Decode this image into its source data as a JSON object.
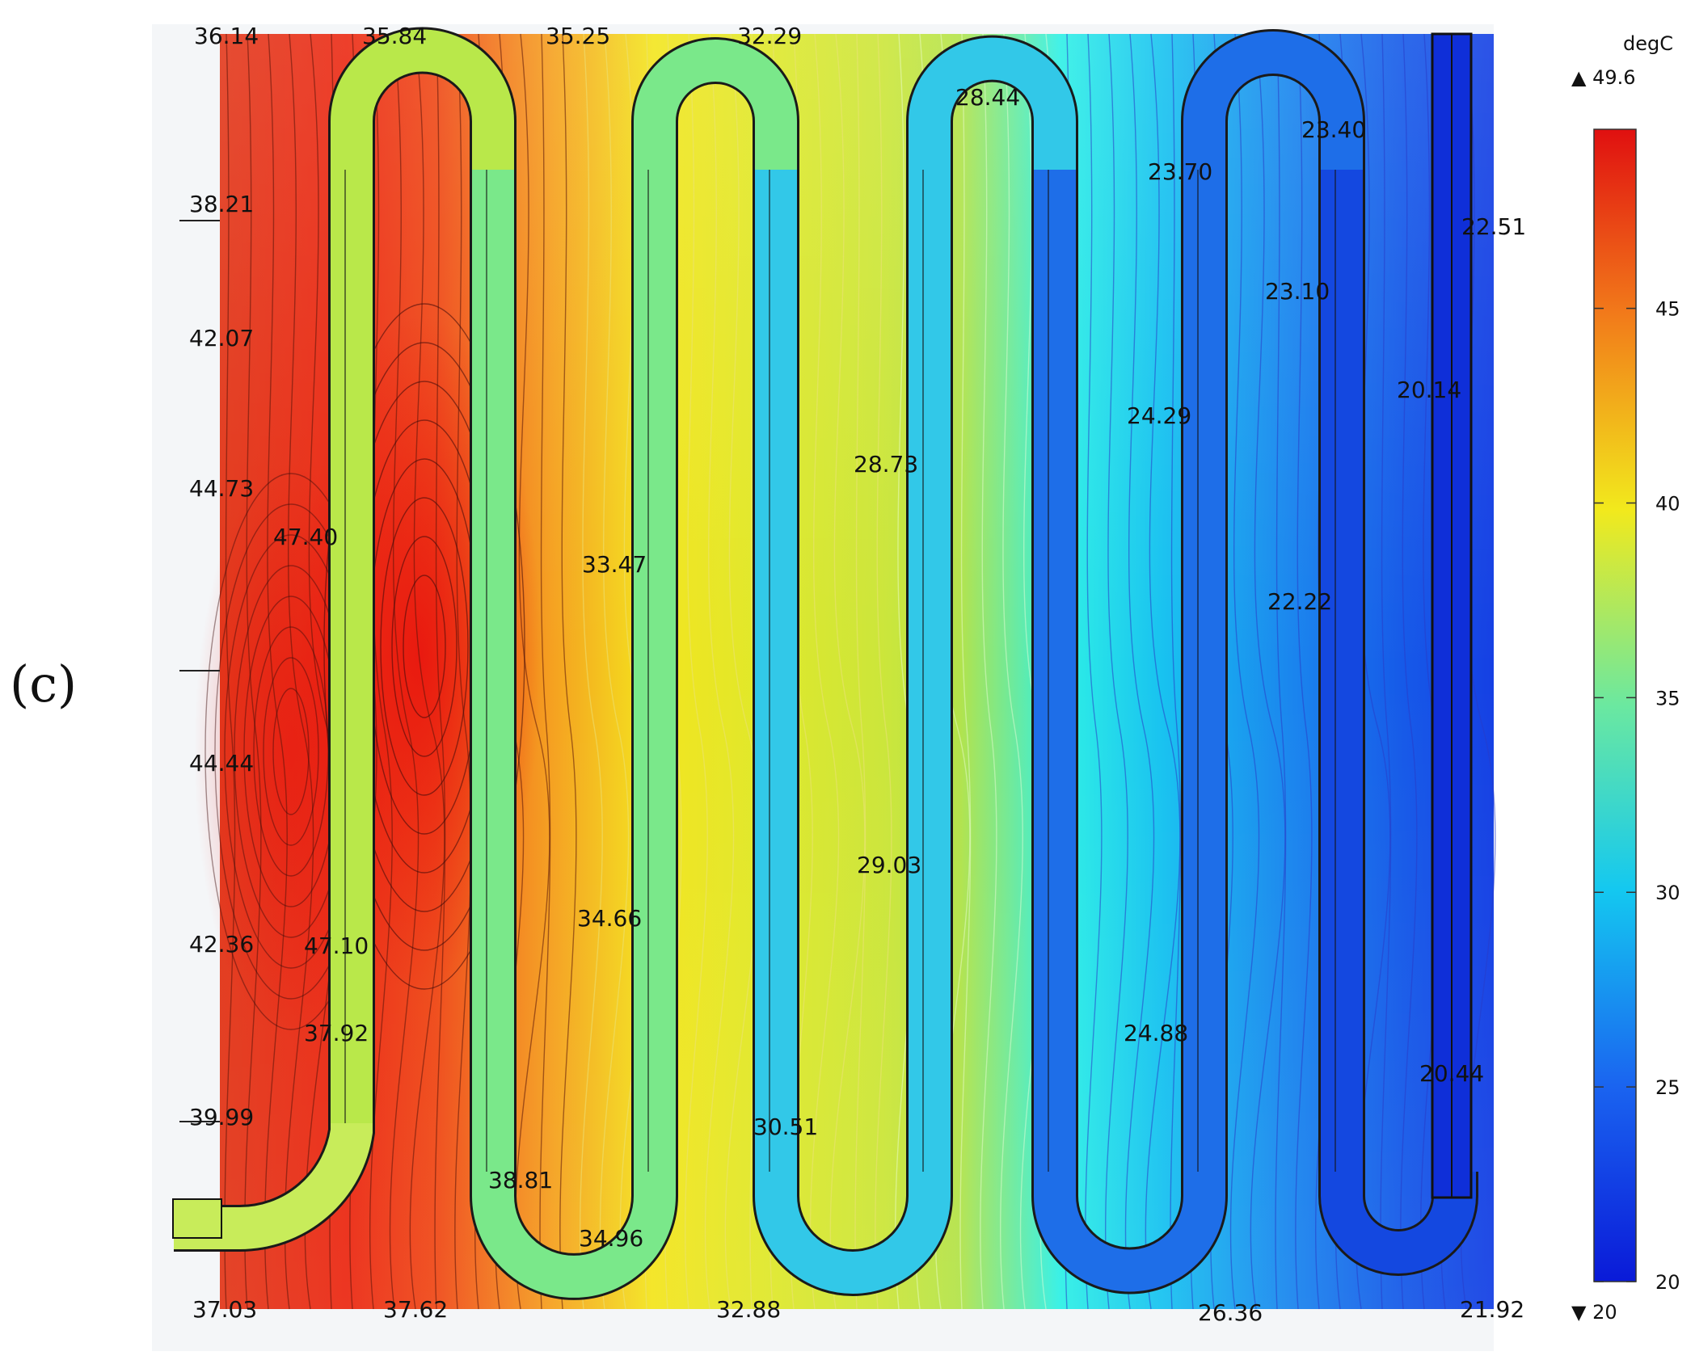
{
  "figure_label": "(c)",
  "colorbar": {
    "unit": "degC",
    "max_marker": "▲ 49.6",
    "min_marker": "▼ 20",
    "min": 20,
    "max": 49.6,
    "ticks": [
      {
        "value": 20,
        "label": "20"
      },
      {
        "value": 25,
        "label": "25"
      },
      {
        "value": 30,
        "label": "30"
      },
      {
        "value": 35,
        "label": "35"
      },
      {
        "value": 40,
        "label": "40"
      },
      {
        "value": 45,
        "label": "45"
      }
    ]
  },
  "temperature_labels": [
    {
      "id": "t-top-1",
      "text": "36.14"
    },
    {
      "id": "t-top-2",
      "text": "35.84"
    },
    {
      "id": "t-top-3",
      "text": "35.25"
    },
    {
      "id": "t-top-4",
      "text": "32.29"
    },
    {
      "id": "t-u3-top",
      "text": "28.44"
    },
    {
      "id": "t-u4-top-r",
      "text": "23.40"
    },
    {
      "id": "t-u4-top-l",
      "text": "23.70"
    },
    {
      "id": "t-right-top",
      "text": "22.51"
    },
    {
      "id": "t-u4-mid",
      "text": "23.10"
    },
    {
      "id": "t-left-1",
      "text": "38.21"
    },
    {
      "id": "t-left-2",
      "text": "42.07"
    },
    {
      "id": "t-right-mid",
      "text": "20.14"
    },
    {
      "id": "t-mid-1",
      "text": "24.29"
    },
    {
      "id": "t-mid-2",
      "text": "28.73"
    },
    {
      "id": "t-left-3",
      "text": "44.73"
    },
    {
      "id": "t-inlet-1",
      "text": "47.40"
    },
    {
      "id": "t-mid-3",
      "text": "33.47"
    },
    {
      "id": "t-mid-4",
      "text": "22.22"
    },
    {
      "id": "t-left-4",
      "text": "44.44"
    },
    {
      "id": "t-mid-5",
      "text": "29.03"
    },
    {
      "id": "t-mid-6",
      "text": "34.66"
    },
    {
      "id": "t-left-5",
      "text": "42.36"
    },
    {
      "id": "t-inlet-2",
      "text": "47.10"
    },
    {
      "id": "t-inlet-3",
      "text": "37.92"
    },
    {
      "id": "t-mid-7",
      "text": "24.88"
    },
    {
      "id": "t-right-low",
      "text": "20.44"
    },
    {
      "id": "t-left-6",
      "text": "39.99"
    },
    {
      "id": "t-mid-8",
      "text": "30.51"
    },
    {
      "id": "t-bot-bend-1",
      "text": "38.81"
    },
    {
      "id": "t-bot-bend-2",
      "text": "34.96"
    },
    {
      "id": "t-bot-1",
      "text": "37.03"
    },
    {
      "id": "t-bot-2",
      "text": "37.62"
    },
    {
      "id": "t-bot-3",
      "text": "32.88"
    },
    {
      "id": "t-bot-4",
      "text": "26.36"
    },
    {
      "id": "t-bot-5",
      "text": "21.92"
    }
  ]
}
